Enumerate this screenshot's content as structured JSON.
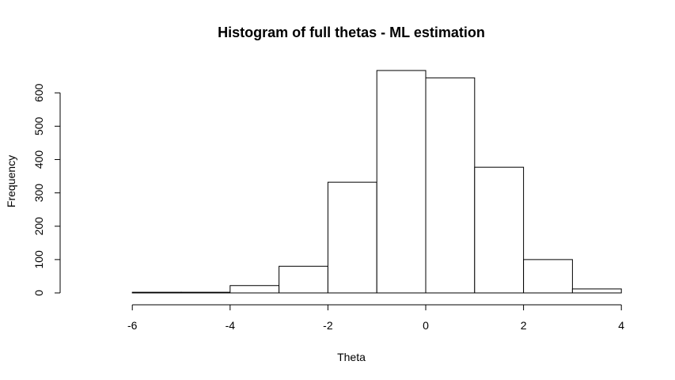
{
  "chart_data": {
    "type": "bar",
    "title": "Histogram of full thetas - ML estimation",
    "xlabel": "Theta",
    "ylabel": "Frequency",
    "bins": [
      {
        "from": -7,
        "to": -6,
        "count": 0
      },
      {
        "from": -6,
        "to": -5,
        "count": 2
      },
      {
        "from": -5,
        "to": -4,
        "count": 2
      },
      {
        "from": -4,
        "to": -3,
        "count": 22
      },
      {
        "from": -3,
        "to": -2,
        "count": 80
      },
      {
        "from": -2,
        "to": -1,
        "count": 332
      },
      {
        "from": -1,
        "to": 0,
        "count": 667
      },
      {
        "from": 0,
        "to": 1,
        "count": 645
      },
      {
        "from": 1,
        "to": 2,
        "count": 377
      },
      {
        "from": 2,
        "to": 3,
        "count": 100
      },
      {
        "from": 3,
        "to": 4,
        "count": 12
      }
    ],
    "xlim": [
      -7,
      4
    ],
    "ylim": [
      0,
      667
    ],
    "x_ticks": [
      -6,
      -4,
      -2,
      0,
      2,
      4
    ],
    "y_ticks": [
      0,
      100,
      200,
      300,
      400,
      500,
      600
    ],
    "x_tick_labels": [
      "-6",
      "-4",
      "-2",
      "0",
      "2",
      "4"
    ],
    "y_tick_labels": [
      "0",
      "100",
      "200",
      "300",
      "400",
      "500",
      "600"
    ],
    "grid": false,
    "legend": "none",
    "colors": {
      "bar_fill": "#ffffff",
      "bar_stroke": "#000000"
    }
  }
}
